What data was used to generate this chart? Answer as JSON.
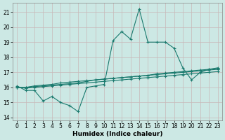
{
  "xlabel": "Humidex (Indice chaleur)",
  "bg_color": "#cce8e4",
  "plot_bg_color": "#cce8e4",
  "grid_color_major": "#c8b8b8",
  "grid_color_minor": "#c8b8b8",
  "line_color": "#1a7a6e",
  "xlim": [
    -0.5,
    23.5
  ],
  "ylim": [
    13.8,
    21.6
  ],
  "yticks": [
    14,
    15,
    16,
    17,
    18,
    19,
    20,
    21
  ],
  "xticks": [
    0,
    1,
    2,
    3,
    4,
    5,
    6,
    7,
    8,
    9,
    10,
    11,
    12,
    13,
    14,
    15,
    16,
    17,
    18,
    19,
    20,
    21,
    22,
    23
  ],
  "series1_x": [
    0,
    1,
    2,
    3,
    4,
    5,
    6,
    7,
    8,
    9,
    10,
    11,
    12,
    13,
    14,
    15,
    16,
    17,
    18,
    19,
    20,
    21,
    22,
    23
  ],
  "series1_y": [
    16.1,
    15.8,
    15.8,
    15.1,
    15.4,
    15.0,
    14.8,
    14.4,
    16.0,
    16.1,
    16.2,
    19.1,
    19.7,
    19.2,
    21.2,
    19.0,
    19.0,
    19.0,
    18.6,
    17.3,
    16.5,
    17.0,
    17.2,
    17.3
  ],
  "series2_x": [
    0,
    1,
    2,
    3,
    4,
    5,
    6,
    7,
    8,
    9,
    10,
    11,
    12,
    13,
    14,
    15,
    16,
    17,
    18,
    19,
    20,
    21,
    22,
    23
  ],
  "series2_y": [
    16.0,
    16.0,
    16.05,
    16.1,
    16.15,
    16.2,
    16.25,
    16.3,
    16.4,
    16.5,
    16.55,
    16.6,
    16.65,
    16.7,
    16.75,
    16.8,
    16.9,
    16.95,
    17.0,
    17.05,
    17.1,
    17.15,
    17.2,
    17.25
  ],
  "series3_x": [
    0,
    1,
    2,
    3,
    4,
    5,
    6,
    7,
    8,
    9,
    10,
    11,
    12,
    13,
    14,
    15,
    16,
    17,
    18,
    19,
    20,
    21,
    22,
    23
  ],
  "series3_y": [
    16.0,
    16.0,
    16.1,
    16.15,
    16.2,
    16.3,
    16.35,
    16.4,
    16.45,
    16.5,
    16.55,
    16.6,
    16.65,
    16.7,
    16.75,
    16.8,
    16.85,
    16.9,
    16.95,
    17.0,
    17.05,
    17.1,
    17.15,
    17.2
  ],
  "series4_x": [
    0,
    1,
    2,
    3,
    4,
    5,
    6,
    7,
    8,
    9,
    10,
    11,
    12,
    13,
    14,
    15,
    16,
    17,
    18,
    19,
    20,
    21,
    22,
    23
  ],
  "series4_y": [
    16.0,
    15.95,
    16.0,
    16.05,
    16.1,
    16.15,
    16.2,
    16.25,
    16.3,
    16.35,
    16.4,
    16.45,
    16.5,
    16.55,
    16.6,
    16.65,
    16.7,
    16.75,
    16.8,
    16.85,
    16.9,
    16.95,
    17.0,
    17.05
  ]
}
